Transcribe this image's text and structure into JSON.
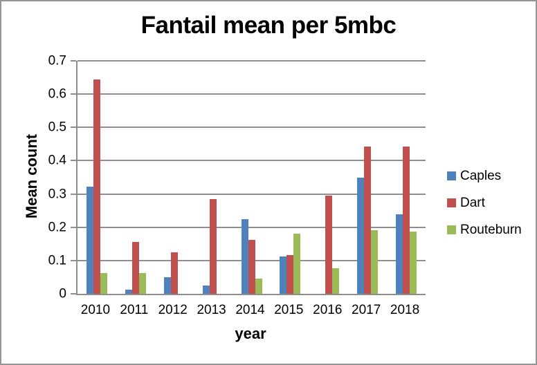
{
  "chart_data": {
    "type": "bar",
    "title": "Fantail mean per 5mbc",
    "xlabel": "year",
    "ylabel": "Mean count",
    "categories": [
      "2010",
      "2011",
      "2012",
      "2013",
      "2014",
      "2015",
      "2016",
      "2017",
      "2018"
    ],
    "series": [
      {
        "name": "Caples",
        "color": "#4F81BD",
        "values": [
          0.323,
          0.013,
          0.05,
          0.024,
          0.225,
          0.113,
          0,
          0.349,
          0.239
        ]
      },
      {
        "name": "Dart",
        "color": "#C0504D",
        "values": [
          0.643,
          0.156,
          0.125,
          0.284,
          0.163,
          0.116,
          0.296,
          0.443,
          0.443
        ]
      },
      {
        "name": "Routeburn",
        "color": "#9BBB59",
        "values": [
          0.062,
          0.062,
          0,
          0,
          0.045,
          0.18,
          0.076,
          0.192,
          0.188
        ]
      }
    ],
    "ylim": [
      0,
      0.7
    ],
    "ytick_step": 0.1,
    "ytick_labels": [
      "0",
      "0.1",
      "0.2",
      "0.3",
      "0.4",
      "0.5",
      "0.6",
      "0.7"
    ],
    "grid": true,
    "legend_position": "right"
  },
  "colors": {
    "gridline": "#8E8E8E",
    "axis": "#8E8E8E",
    "frame_border": "#969696",
    "background": "#FFFFFF",
    "text": "#000000"
  }
}
